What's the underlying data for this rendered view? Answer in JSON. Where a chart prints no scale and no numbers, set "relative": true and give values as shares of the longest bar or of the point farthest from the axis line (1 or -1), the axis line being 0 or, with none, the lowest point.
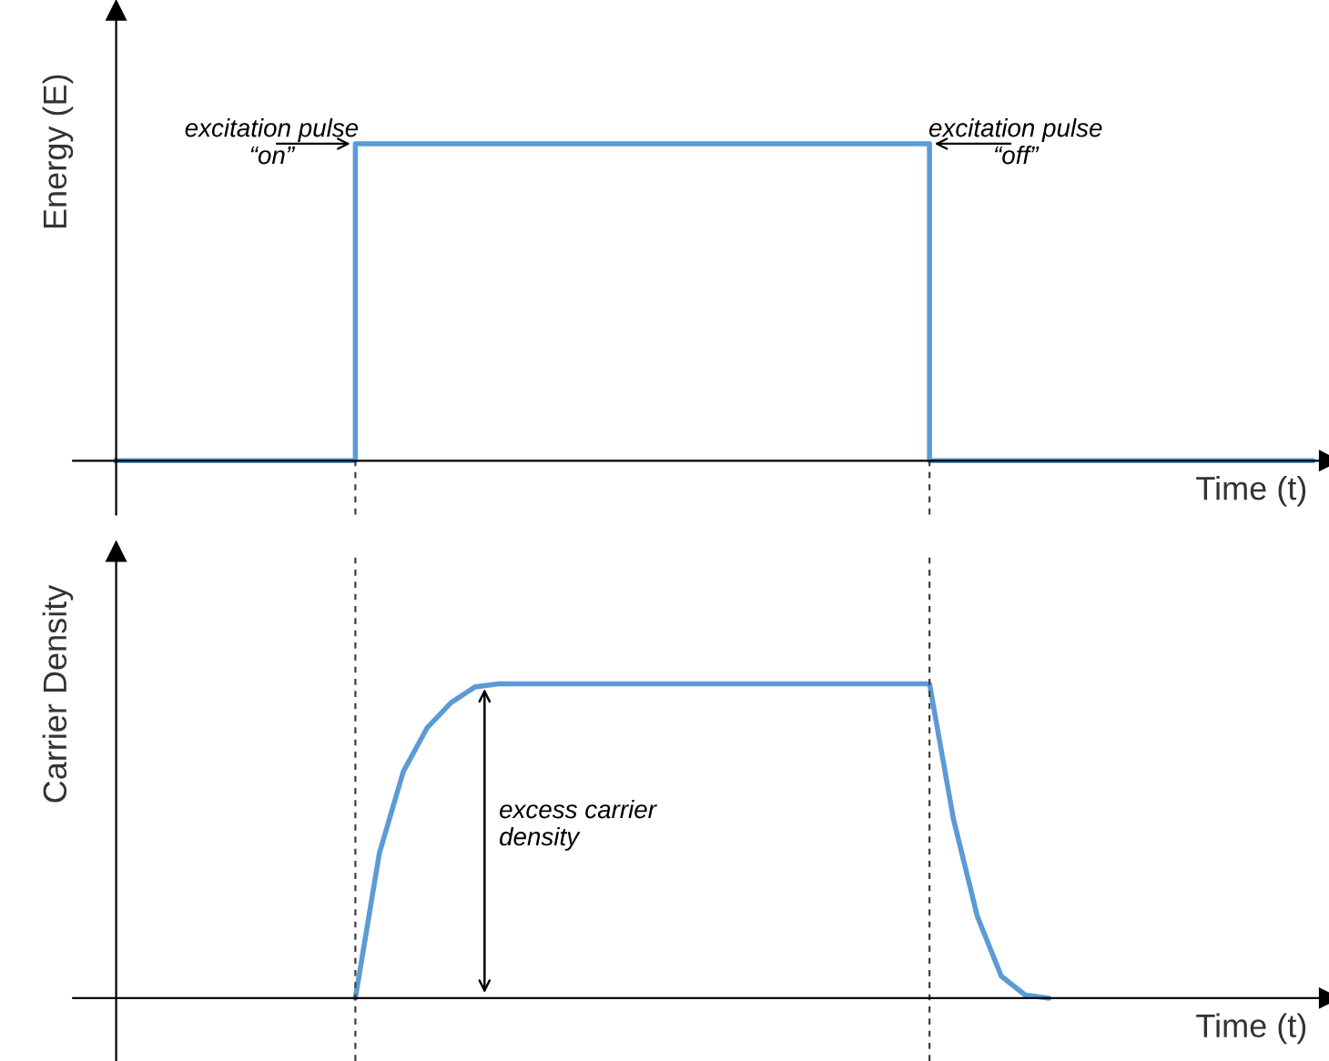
{
  "chart_data": [
    {
      "type": "step",
      "relative": true,
      "ylabel": "Energy (E)",
      "xlabel": "Time (t)",
      "categories": [
        null,
        null,
        null,
        null,
        null,
        null,
        null,
        null,
        null,
        null,
        null,
        null,
        null,
        null,
        null,
        null,
        null,
        null,
        null,
        null,
        null,
        null,
        null,
        null,
        null,
        null,
        null,
        null,
        null,
        null,
        null,
        null,
        null,
        null,
        null,
        null,
        null,
        null,
        null,
        null,
        null,
        null,
        null,
        null,
        null,
        null,
        null,
        null,
        null,
        null,
        null
      ],
      "series": [
        {
          "color": "#5b9bd5",
          "values": [
            0,
            0,
            0,
            0,
            0,
            0,
            0,
            0,
            0,
            0,
            1,
            1,
            1,
            1,
            1,
            1,
            1,
            1,
            1,
            1,
            1,
            1,
            1,
            1,
            1,
            1,
            1,
            1,
            1,
            1,
            1,
            1,
            1,
            1,
            0,
            0,
            0,
            0,
            0,
            0,
            0,
            0,
            0,
            0,
            0,
            0,
            0,
            0,
            0,
            0,
            0
          ]
        }
      ],
      "annotations": [
        "excitation pulse\n“on”",
        "excitation pulse\n“off”"
      ]
    },
    {
      "type": "line",
      "relative": true,
      "ylabel": "Carrier Density",
      "xlabel": "Time (t)",
      "categories": [
        null,
        null,
        null,
        null,
        null,
        null,
        null,
        null,
        null,
        null,
        null,
        null,
        null,
        null,
        null,
        null,
        null,
        null,
        null,
        null,
        null,
        null,
        null,
        null,
        null,
        null,
        null,
        null,
        null,
        null,
        null,
        null,
        null,
        null,
        null,
        null,
        null,
        null,
        null,
        null,
        null,
        null,
        null,
        null,
        null,
        null,
        null,
        null,
        null,
        null,
        null
      ],
      "series": [
        {
          "color": "#5b9bd5",
          "values": [
            null,
            null,
            null,
            null,
            null,
            null,
            null,
            null,
            null,
            null,
            0,
            0.46,
            0.72,
            0.86,
            0.94,
            0.99,
            1,
            1,
            1,
            1,
            1,
            1,
            1,
            1,
            1,
            1,
            1,
            1,
            1,
            1,
            1,
            1,
            1,
            1,
            1,
            0.57,
            0.26,
            0.07,
            0.01,
            0,
            null,
            null,
            null,
            null,
            null,
            null,
            null,
            null,
            null,
            null,
            null
          ]
        }
      ],
      "annotations": [
        "excess carrier\ndensity"
      ]
    }
  ]
}
